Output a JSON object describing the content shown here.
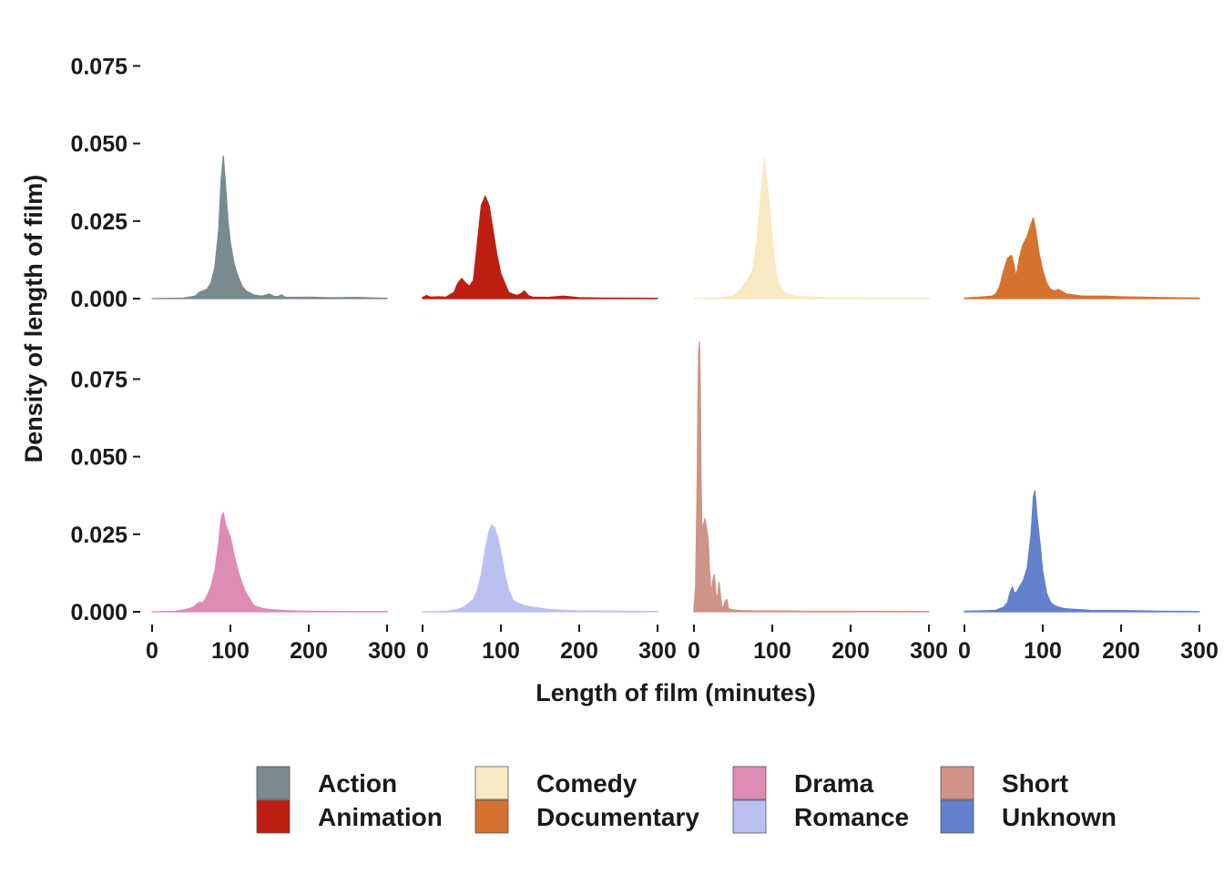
{
  "chart_data": {
    "type": "area",
    "xlabel": "Length of film (minutes)",
    "ylabel": "Density of length of film)",
    "xlim": [
      0,
      300
    ],
    "ylim": [
      0,
      0.08
    ],
    "x_ticks": [
      0,
      100,
      200,
      300
    ],
    "x_tick_labels": [
      "0",
      "100",
      "200",
      "300"
    ],
    "y_ticks": [
      0,
      0.025,
      0.05,
      0.075
    ],
    "y_tick_labels": [
      "0.000",
      "0.025",
      "0.050",
      "0.075"
    ],
    "grid": false,
    "legend_position": "bottom",
    "facets": [
      {
        "name": "Action",
        "color": "#7A8B8F",
        "row": 0,
        "col": 0,
        "x": [
          0,
          40,
          55,
          60,
          65,
          70,
          75,
          80,
          85,
          88,
          91,
          94,
          97,
          100,
          105,
          110,
          115,
          120,
          130,
          140,
          150,
          155,
          160,
          165,
          170,
          180,
          200,
          230,
          260,
          300
        ],
        "y": [
          0,
          0.0002,
          0.0008,
          0.002,
          0.0025,
          0.003,
          0.005,
          0.01,
          0.022,
          0.038,
          0.046,
          0.036,
          0.025,
          0.018,
          0.011,
          0.007,
          0.004,
          0.0025,
          0.0012,
          0.0008,
          0.0015,
          0.0008,
          0.0006,
          0.0012,
          0.0005,
          0.0004,
          0.0005,
          0.0003,
          0.0004,
          0.0001
        ]
      },
      {
        "name": "Animation",
        "color": "#BE1E12",
        "row": 0,
        "col": 1,
        "x": [
          0,
          5,
          10,
          20,
          30,
          40,
          45,
          50,
          55,
          60,
          65,
          70,
          75,
          80,
          85,
          90,
          95,
          100,
          110,
          120,
          125,
          130,
          135,
          140,
          160,
          180,
          200,
          230,
          300
        ],
        "y": [
          0.0004,
          0.001,
          0.0005,
          0.0006,
          0.0005,
          0.002,
          0.005,
          0.0065,
          0.005,
          0.004,
          0.006,
          0.018,
          0.03,
          0.033,
          0.03,
          0.022,
          0.014,
          0.008,
          0.002,
          0.001,
          0.0015,
          0.0025,
          0.001,
          0.0005,
          0.0004,
          0.0008,
          0.0003,
          0.0002,
          0.0001
        ]
      },
      {
        "name": "Comedy",
        "color": "#F7EAC3",
        "row": 0,
        "col": 2,
        "x": [
          0,
          30,
          50,
          60,
          65,
          70,
          75,
          80,
          84,
          88,
          90,
          93,
          96,
          100,
          104,
          108,
          115,
          125,
          140,
          170,
          200,
          250,
          300
        ],
        "y": [
          0,
          0.0002,
          0.0008,
          0.003,
          0.005,
          0.007,
          0.009,
          0.018,
          0.03,
          0.04,
          0.045,
          0.038,
          0.031,
          0.02,
          0.01,
          0.005,
          0.002,
          0.001,
          0.0006,
          0.0003,
          0.0003,
          0.0002,
          0.0001
        ]
      },
      {
        "name": "Documentary",
        "color": "#D57230",
        "row": 0,
        "col": 3,
        "x": [
          0,
          20,
          35,
          40,
          45,
          50,
          55,
          60,
          63,
          66,
          70,
          74,
          80,
          85,
          88,
          91,
          95,
          100,
          105,
          110,
          115,
          120,
          130,
          150,
          180,
          200,
          240,
          300
        ],
        "y": [
          0.0002,
          0.0005,
          0.0008,
          0.0015,
          0.004,
          0.009,
          0.013,
          0.014,
          0.011,
          0.007,
          0.013,
          0.017,
          0.02,
          0.024,
          0.026,
          0.022,
          0.015,
          0.009,
          0.005,
          0.003,
          0.0025,
          0.003,
          0.0015,
          0.0008,
          0.0008,
          0.0006,
          0.0004,
          0.0002
        ]
      },
      {
        "name": "Drama",
        "color": "#DE8BB6",
        "row": 1,
        "col": 0,
        "x": [
          0,
          30,
          40,
          50,
          55,
          60,
          65,
          70,
          75,
          80,
          85,
          88,
          91,
          94,
          97,
          100,
          105,
          110,
          115,
          120,
          125,
          130,
          140,
          150,
          170,
          200,
          250,
          300
        ],
        "y": [
          0,
          0.0002,
          0.0006,
          0.0012,
          0.002,
          0.003,
          0.003,
          0.005,
          0.008,
          0.013,
          0.022,
          0.03,
          0.032,
          0.028,
          0.026,
          0.024,
          0.018,
          0.013,
          0.009,
          0.006,
          0.004,
          0.002,
          0.0012,
          0.0007,
          0.0004,
          0.0002,
          0.0001,
          0.0001
        ]
      },
      {
        "name": "Romance",
        "color": "#BBC0F3",
        "row": 1,
        "col": 1,
        "x": [
          0,
          30,
          40,
          50,
          55,
          60,
          65,
          70,
          75,
          80,
          85,
          88,
          92,
          96,
          100,
          105,
          110,
          115,
          120,
          130,
          140,
          150,
          160,
          180,
          200,
          250,
          300
        ],
        "y": [
          0,
          0.0002,
          0.0005,
          0.0012,
          0.002,
          0.003,
          0.004,
          0.007,
          0.012,
          0.02,
          0.026,
          0.028,
          0.027,
          0.024,
          0.019,
          0.012,
          0.007,
          0.004,
          0.003,
          0.002,
          0.0015,
          0.0012,
          0.0008,
          0.0005,
          0.0003,
          0.0002,
          0.0001
        ]
      },
      {
        "name": "Short",
        "color": "#D09387",
        "row": 1,
        "col": 2,
        "x": [
          0,
          2,
          4,
          5,
          6,
          7,
          8,
          9,
          10,
          12,
          14,
          16,
          18,
          20,
          22,
          24,
          26,
          28,
          30,
          32,
          34,
          36,
          38,
          40,
          42,
          44,
          46,
          50,
          60,
          80,
          100,
          150,
          200,
          300
        ],
        "y": [
          0.001,
          0.008,
          0.04,
          0.068,
          0.084,
          0.087,
          0.075,
          0.045,
          0.028,
          0.028,
          0.03,
          0.027,
          0.024,
          0.013,
          0.006,
          0.01,
          0.012,
          0.006,
          0.004,
          0.0095,
          0.005,
          0.001,
          0.002,
          0.0035,
          0.004,
          0.0012,
          0.0008,
          0.0006,
          0.0004,
          0.0003,
          0.0003,
          0.0002,
          0.0002,
          0.0001
        ]
      },
      {
        "name": "Unknown",
        "color": "#6280CB",
        "row": 1,
        "col": 3,
        "x": [
          0,
          20,
          40,
          50,
          55,
          58,
          61,
          64,
          67,
          70,
          75,
          80,
          85,
          88,
          90,
          93,
          97,
          100,
          105,
          110,
          115,
          120,
          125,
          130,
          140,
          160,
          200,
          250,
          300
        ],
        "y": [
          0.0002,
          0.0003,
          0.0005,
          0.0015,
          0.003,
          0.006,
          0.008,
          0.006,
          0.0065,
          0.008,
          0.01,
          0.014,
          0.025,
          0.037,
          0.039,
          0.03,
          0.021,
          0.013,
          0.006,
          0.003,
          0.002,
          0.0015,
          0.0012,
          0.001,
          0.0008,
          0.0005,
          0.0004,
          0.0002,
          0.0001
        ]
      }
    ],
    "legend": [
      {
        "label": "Action",
        "color": "#7A8B8F"
      },
      {
        "label": "Animation",
        "color": "#BE1E12"
      },
      {
        "label": "Comedy",
        "color": "#F7EAC3"
      },
      {
        "label": "Documentary",
        "color": "#D57230"
      },
      {
        "label": "Drama",
        "color": "#DE8BB6"
      },
      {
        "label": "Romance",
        "color": "#BBC0F3"
      },
      {
        "label": "Short",
        "color": "#D09387"
      },
      {
        "label": "Unknown",
        "color": "#6280CB"
      }
    ]
  }
}
